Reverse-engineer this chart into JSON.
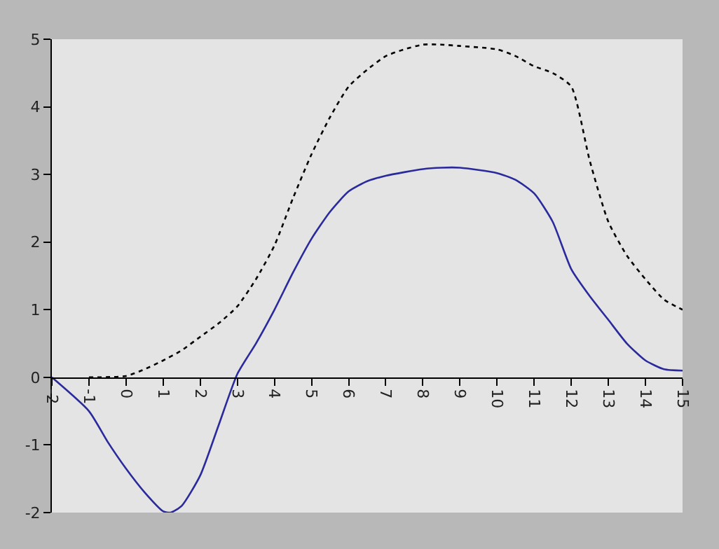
{
  "chart_data": {
    "type": "line",
    "xlim": [
      -2,
      15
    ],
    "ylim": [
      -2,
      5
    ],
    "xticks": [
      -2,
      -1,
      0,
      1,
      2,
      3,
      4,
      5,
      6,
      7,
      8,
      9,
      10,
      11,
      12,
      13,
      14,
      15
    ],
    "yticks": [
      -2,
      -1,
      0,
      1,
      2,
      3,
      4,
      5
    ],
    "grid": false,
    "series": [
      {
        "color": "#2a2a9c",
        "line_style": "solid",
        "x": [
          -2,
          -1,
          -0.5,
          0,
          0.5,
          1,
          1.2,
          1.5,
          2,
          2.5,
          3,
          3.5,
          4,
          4.5,
          5,
          5.5,
          6,
          6.5,
          7,
          8,
          8.5,
          9,
          10,
          10.5,
          11,
          11.5,
          12,
          12.5,
          13,
          13.5,
          14,
          14.5,
          15
        ],
        "values": [
          0,
          -0.5,
          -0.95,
          -1.35,
          -1.7,
          -1.98,
          -2.0,
          -1.9,
          -1.45,
          -0.7,
          0.05,
          0.5,
          1.0,
          1.55,
          2.05,
          2.45,
          2.75,
          2.9,
          2.98,
          3.08,
          3.1,
          3.1,
          3.02,
          2.92,
          2.72,
          2.3,
          1.6,
          1.2,
          0.85,
          0.5,
          0.25,
          0.12,
          0.1
        ]
      },
      {
        "color": "#000000",
        "line_style": "dotted",
        "x": [
          -1,
          0,
          0.5,
          1,
          1.5,
          2,
          2.5,
          3,
          3.5,
          4,
          4.5,
          5,
          5.5,
          6,
          6.5,
          7,
          7.5,
          8,
          8.5,
          9,
          10,
          10.5,
          11,
          11.5,
          12,
          12.5,
          13,
          13.5,
          14,
          14.5,
          15
        ],
        "values": [
          0,
          0.02,
          0.12,
          0.25,
          0.4,
          0.6,
          0.8,
          1.05,
          1.45,
          1.95,
          2.65,
          3.3,
          3.85,
          4.3,
          4.55,
          4.75,
          4.85,
          4.92,
          4.92,
          4.9,
          4.85,
          4.75,
          4.6,
          4.5,
          4.3,
          3.2,
          2.3,
          1.8,
          1.45,
          1.15,
          1.0
        ]
      }
    ]
  }
}
